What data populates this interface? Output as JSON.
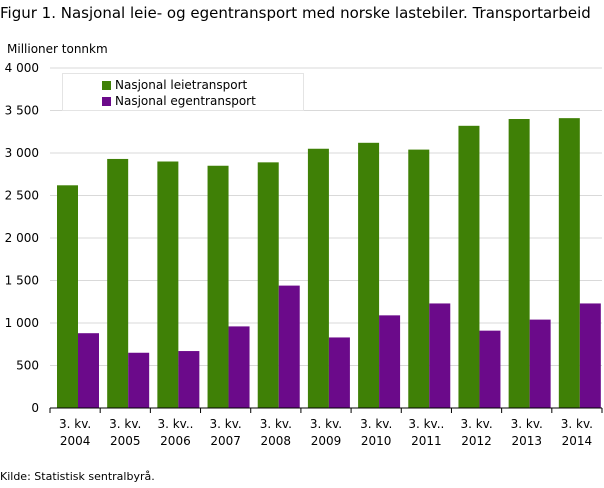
{
  "header": {
    "title": "Figur 1. Nasjonal leie- og egentransport med norske lastebiler. Transportarbeid",
    "unit_label": "Millioner  tonnkm"
  },
  "footer": {
    "source": "Kilde: Statistisk sentralbyrå."
  },
  "chart_data": {
    "type": "bar",
    "title": "Figur 1. Nasjonal leie- og egentransport med norske lastebiler. Transportarbeid",
    "ylabel": "Millioner  tonnkm",
    "xlabel": "",
    "ylim": [
      0,
      4000
    ],
    "yticks": [
      0,
      500,
      1000,
      1500,
      2000,
      2500,
      3000,
      3500,
      4000
    ],
    "ytick_labels": [
      "0",
      "500",
      "1 000",
      "1 500",
      "2 000",
      "2 500",
      "3 000",
      "3 500",
      "4 000"
    ],
    "grid": "horizontal",
    "legend_position": "top-left",
    "categories": [
      [
        "3. kv.",
        "2004"
      ],
      [
        "3. kv.",
        "2005"
      ],
      [
        "3. kv..",
        "2006"
      ],
      [
        "3. kv.",
        "2007"
      ],
      [
        "3. kv.",
        "2008"
      ],
      [
        "3. kv.",
        "2009"
      ],
      [
        "3. kv.",
        "2010"
      ],
      [
        "3. kv..",
        "2011"
      ],
      [
        "3. kv.",
        "2012"
      ],
      [
        "3. kv.",
        "2013"
      ],
      [
        "3. kv.",
        "2014"
      ]
    ],
    "series": [
      {
        "name": "Nasjonal leietransport",
        "color": "#3f8006",
        "values": [
          2620,
          2930,
          2900,
          2850,
          2890,
          3050,
          3120,
          3040,
          3320,
          3400,
          3410
        ]
      },
      {
        "name": "Nasjonal egentransport",
        "color": "#6b0a8a",
        "values": [
          880,
          650,
          670,
          960,
          1440,
          830,
          1090,
          1230,
          910,
          1040,
          1230
        ]
      }
    ]
  }
}
